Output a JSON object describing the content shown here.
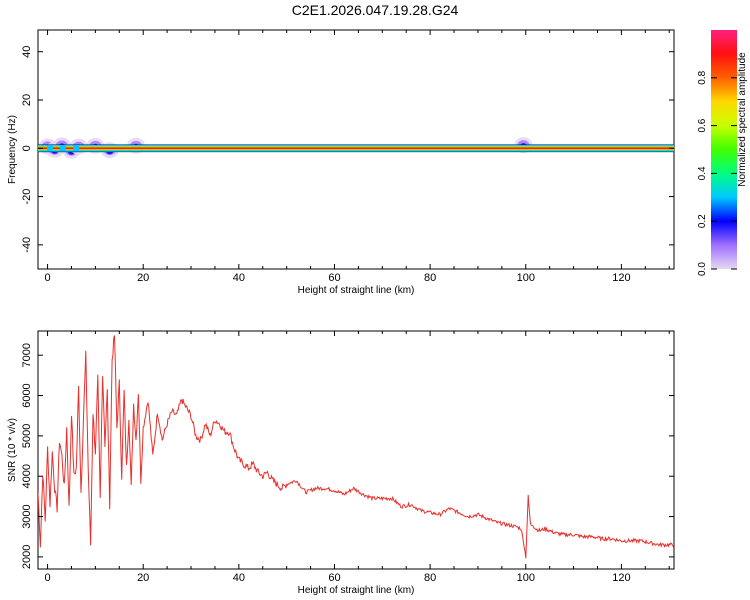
{
  "title": "C2E1.2026.047.19.28.G24",
  "chart_data": [
    {
      "type": "heatmap",
      "xlabel": "Height of straight line (km)",
      "ylabel": "Frequency (Hz)",
      "xlim": [
        -2,
        131
      ],
      "ylim": [
        -50,
        49
      ],
      "xticks": [
        0,
        20,
        40,
        60,
        80,
        100,
        120
      ],
      "yticks": [
        -40,
        -20,
        0,
        20,
        40
      ],
      "band": {
        "freq_center": 0,
        "freq_halfwidth": 1.6,
        "x_range": [
          -2,
          131
        ]
      },
      "patches": [
        {
          "x": 0,
          "y": 0.8,
          "amp": 0.25
        },
        {
          "x": 1.5,
          "y": -0.6,
          "amp": 0.22
        },
        {
          "x": 3,
          "y": 1.2,
          "amp": 0.2
        },
        {
          "x": 5,
          "y": -1.0,
          "amp": 0.18
        },
        {
          "x": 6.5,
          "y": 0.7,
          "amp": 0.2
        },
        {
          "x": 10,
          "y": 1.0,
          "amp": 0.15
        },
        {
          "x": 13,
          "y": -0.8,
          "amp": 0.15
        },
        {
          "x": 18.5,
          "y": 1.0,
          "amp": 0.12
        },
        {
          "x": 99.5,
          "y": 1.3,
          "amp": 0.2
        }
      ],
      "colorbar": {
        "label": "Normalized spectral amplitude",
        "ticks": [
          0.0,
          0.2,
          0.4,
          0.6,
          0.8
        ],
        "range": [
          0,
          1
        ],
        "colors": [
          "#e6d8f2",
          "#a070ff",
          "#0000ff",
          "#00c8ff",
          "#00ff80",
          "#40ff00",
          "#c8ff00",
          "#ffd800",
          "#ff6000",
          "#ff1010",
          "#ff2080"
        ]
      }
    },
    {
      "type": "line",
      "xlabel": "Height of straight line (km)",
      "ylabel": "SNR (10 * v/v)",
      "xlim": [
        -2,
        131
      ],
      "ylim": [
        1700,
        7600
      ],
      "xticks": [
        0,
        20,
        40,
        60,
        80,
        100,
        120
      ],
      "yticks": [
        2000,
        3000,
        4000,
        5000,
        6000,
        7000
      ],
      "color": "#e8302c",
      "series": [
        {
          "x": [
            -2,
            -1.5,
            -1,
            -0.5,
            0,
            0.5,
            1,
            1.5,
            2,
            2.5,
            3,
            3.5,
            4,
            4.5,
            5,
            5.5,
            6,
            6.5,
            7,
            7.5,
            8,
            8.5,
            9,
            9.5,
            10,
            10.5,
            11,
            11.5,
            12,
            12.5,
            13,
            13.5,
            14,
            14.5,
            15,
            15.5,
            16,
            16.5,
            17,
            17.5,
            18,
            18.5,
            19,
            19.5,
            20,
            21,
            22,
            23,
            24,
            25,
            26,
            27,
            28,
            29,
            30,
            31,
            32,
            33,
            34,
            35,
            36,
            37,
            38,
            39,
            40,
            41,
            42,
            43,
            44,
            45,
            46,
            47,
            48,
            49,
            50,
            52,
            54,
            56,
            58,
            60,
            62,
            64,
            66,
            68,
            70,
            72,
            74,
            76,
            78,
            80,
            82,
            84,
            86,
            88,
            90,
            92,
            94,
            96,
            98,
            99,
            99.5,
            100,
            100.5,
            101,
            101.5,
            102,
            103,
            104,
            106,
            108,
            110,
            112,
            114,
            116,
            118,
            120,
            122,
            124,
            126,
            128,
            130,
            131
          ],
          "y": [
            3600,
            2300,
            4100,
            2900,
            4700,
            3300,
            4600,
            3700,
            3200,
            4900,
            4500,
            3700,
            5200,
            3200,
            5600,
            4000,
            4200,
            6200,
            3600,
            5400,
            7000,
            4200,
            2300,
            5600,
            4600,
            6400,
            3400,
            6600,
            4800,
            6100,
            3300,
            6900,
            7500,
            5200,
            6300,
            4000,
            6100,
            4200,
            5500,
            3700,
            5800,
            4900,
            6100,
            3900,
            5200,
            5900,
            4500,
            5600,
            4900,
            5300,
            5600,
            5500,
            5900,
            5700,
            5500,
            5000,
            4900,
            5300,
            5000,
            5400,
            5300,
            5100,
            5100,
            4700,
            4400,
            4300,
            4200,
            4300,
            4100,
            4000,
            4100,
            3900,
            3800,
            3700,
            3800,
            3900,
            3600,
            3700,
            3700,
            3650,
            3550,
            3700,
            3550,
            3450,
            3450,
            3450,
            3250,
            3300,
            3150,
            3100,
            3050,
            3200,
            3100,
            3000,
            3050,
            2950,
            2850,
            2800,
            2750,
            2700,
            2400,
            2000,
            3500,
            2800,
            2800,
            2700,
            2650,
            2700,
            2600,
            2550,
            2550,
            2500,
            2500,
            2450,
            2450,
            2400,
            2400,
            2400,
            2350,
            2300,
            2300,
            2300
          ]
        }
      ]
    }
  ]
}
